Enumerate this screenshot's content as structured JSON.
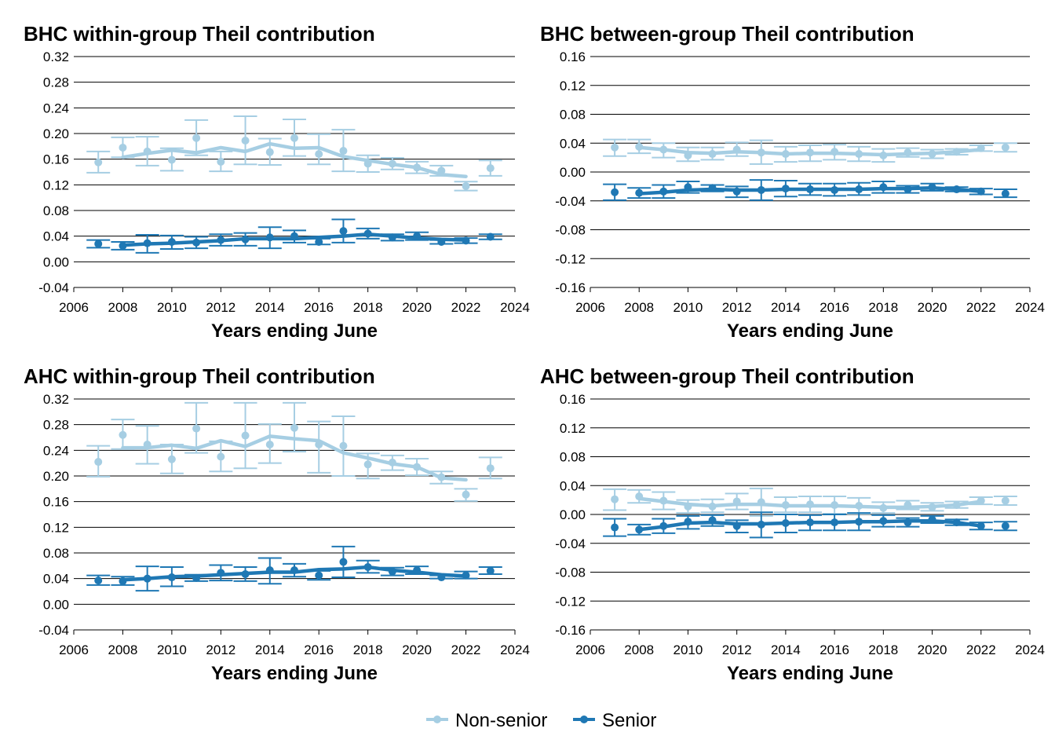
{
  "colors": {
    "non_senior": "#a6cee3",
    "senior": "#1f78b4",
    "grid": "#000000",
    "background": "#ffffff"
  },
  "legend": {
    "position": "bottom-center",
    "items": [
      "Non-senior",
      "Senior"
    ]
  },
  "chart_data": [
    {
      "type": "line",
      "title": "BHC within-group Theil contribution",
      "xlabel": "Years ending June",
      "ylabel": "",
      "xlim": [
        2006,
        2024
      ],
      "ylim": [
        -0.04,
        0.32
      ],
      "xticks": [
        "2006",
        "2008",
        "2010",
        "2012",
        "2014",
        "2016",
        "2018",
        "2020",
        "2022",
        "2024"
      ],
      "yticks": [
        "-0.04",
        "0.00",
        "0.04",
        "0.08",
        "0.12",
        "0.16",
        "0.20",
        "0.24",
        "0.28",
        "0.32"
      ],
      "grid": "horizontal",
      "x": [
        2007,
        2008,
        2009,
        2010,
        2011,
        2012,
        2013,
        2014,
        2015,
        2016,
        2017,
        2018,
        2019,
        2020,
        2021,
        2022,
        2023
      ],
      "series": [
        {
          "name": "Non-senior",
          "color_key": "non_senior",
          "points": [
            0.155,
            0.178,
            0.172,
            0.159,
            0.193,
            0.156,
            0.189,
            0.171,
            0.193,
            0.168,
            0.173,
            0.153,
            0.153,
            0.147,
            0.142,
            0.118,
            0.146
          ],
          "err_low": [
            0.139,
            0.163,
            0.15,
            0.142,
            0.166,
            0.141,
            0.152,
            0.151,
            0.165,
            0.152,
            0.141,
            0.14,
            0.144,
            0.138,
            0.134,
            0.111,
            0.134
          ],
          "err_high": [
            0.172,
            0.194,
            0.195,
            0.177,
            0.221,
            0.172,
            0.227,
            0.192,
            0.222,
            0.199,
            0.206,
            0.166,
            0.162,
            0.156,
            0.15,
            0.125,
            0.158
          ],
          "trend_x": [
            2008,
            2009,
            2010,
            2011,
            2012,
            2013,
            2014,
            2015,
            2016,
            2017,
            2018,
            2019,
            2020,
            2021,
            2022
          ],
          "trend": [
            0.163,
            0.169,
            0.174,
            0.17,
            0.178,
            0.172,
            0.184,
            0.177,
            0.178,
            0.164,
            0.158,
            0.152,
            0.147,
            0.136,
            0.133
          ]
        },
        {
          "name": "Senior",
          "color_key": "senior",
          "points": [
            0.028,
            0.025,
            0.029,
            0.031,
            0.03,
            0.034,
            0.035,
            0.038,
            0.04,
            0.031,
            0.048,
            0.044,
            0.038,
            0.04,
            0.031,
            0.033,
            0.039
          ],
          "err_low": [
            0.022,
            0.019,
            0.014,
            0.02,
            0.021,
            0.025,
            0.025,
            0.021,
            0.03,
            0.027,
            0.03,
            0.036,
            0.033,
            0.034,
            0.028,
            0.029,
            0.035
          ],
          "err_high": [
            0.034,
            0.031,
            0.042,
            0.041,
            0.039,
            0.043,
            0.045,
            0.054,
            0.049,
            0.036,
            0.066,
            0.052,
            0.043,
            0.046,
            0.034,
            0.037,
            0.043
          ],
          "trend_x": [
            2008,
            2009,
            2010,
            2011,
            2012,
            2013,
            2014,
            2015,
            2016,
            2017,
            2018,
            2019,
            2020,
            2021,
            2022
          ],
          "trend": [
            0.026,
            0.028,
            0.029,
            0.031,
            0.033,
            0.036,
            0.036,
            0.036,
            0.038,
            0.04,
            0.043,
            0.04,
            0.037,
            0.035,
            0.034
          ]
        }
      ]
    },
    {
      "type": "line",
      "title": "BHC between-group Theil contribution",
      "xlabel": "Years ending June",
      "ylabel": "",
      "xlim": [
        2006,
        2024
      ],
      "ylim": [
        -0.16,
        0.16
      ],
      "xticks": [
        "2006",
        "2008",
        "2010",
        "2012",
        "2014",
        "2016",
        "2018",
        "2020",
        "2022",
        "2024"
      ],
      "yticks": [
        "-0.16",
        "-0.12",
        "-0.08",
        "-0.04",
        "0.00",
        "0.04",
        "0.08",
        "0.12",
        "0.16"
      ],
      "grid": "horizontal",
      "x": [
        2007,
        2008,
        2009,
        2010,
        2011,
        2012,
        2013,
        2014,
        2015,
        2016,
        2017,
        2018,
        2019,
        2020,
        2021,
        2022,
        2023
      ],
      "series": [
        {
          "name": "Non-senior",
          "color_key": "non_senior",
          "points": [
            0.034,
            0.035,
            0.031,
            0.023,
            0.025,
            0.031,
            0.027,
            0.025,
            0.027,
            0.028,
            0.025,
            0.023,
            0.027,
            0.025,
            0.028,
            0.033,
            0.034
          ],
          "err_low": [
            0.022,
            0.026,
            0.02,
            0.015,
            0.017,
            0.022,
            0.011,
            0.014,
            0.015,
            0.017,
            0.015,
            0.014,
            0.021,
            0.019,
            0.024,
            0.029,
            0.028
          ],
          "err_high": [
            0.045,
            0.045,
            0.04,
            0.034,
            0.034,
            0.041,
            0.044,
            0.035,
            0.037,
            0.038,
            0.035,
            0.032,
            0.033,
            0.031,
            0.032,
            0.037,
            0.04
          ],
          "trend_x": [
            2008,
            2009,
            2010,
            2011,
            2012,
            2013,
            2014,
            2015,
            2016,
            2017,
            2018,
            2019,
            2020,
            2021,
            2022
          ],
          "trend": [
            0.034,
            0.031,
            0.027,
            0.026,
            0.028,
            0.027,
            0.025,
            0.026,
            0.026,
            0.025,
            0.024,
            0.025,
            0.026,
            0.028,
            0.031
          ]
        },
        {
          "name": "Senior",
          "color_key": "senior",
          "points": [
            -0.028,
            -0.029,
            -0.027,
            -0.021,
            -0.022,
            -0.027,
            -0.025,
            -0.023,
            -0.024,
            -0.025,
            -0.024,
            -0.021,
            -0.024,
            -0.021,
            -0.024,
            -0.027,
            -0.03
          ],
          "err_low": [
            -0.039,
            -0.036,
            -0.036,
            -0.029,
            -0.027,
            -0.035,
            -0.039,
            -0.034,
            -0.032,
            -0.033,
            -0.032,
            -0.029,
            -0.029,
            -0.026,
            -0.027,
            -0.031,
            -0.035
          ],
          "err_high": [
            -0.017,
            -0.022,
            -0.018,
            -0.013,
            -0.018,
            -0.02,
            -0.011,
            -0.012,
            -0.016,
            -0.016,
            -0.015,
            -0.013,
            -0.019,
            -0.016,
            -0.021,
            -0.023,
            -0.024
          ],
          "trend_x": [
            2008,
            2009,
            2010,
            2011,
            2012,
            2013,
            2014,
            2015,
            2016,
            2017,
            2018,
            2019,
            2020,
            2021,
            2022
          ],
          "trend": [
            -0.03,
            -0.028,
            -0.025,
            -0.024,
            -0.025,
            -0.025,
            -0.024,
            -0.024,
            -0.024,
            -0.024,
            -0.023,
            -0.023,
            -0.022,
            -0.024,
            -0.027
          ]
        }
      ]
    },
    {
      "type": "line",
      "title": "AHC within-group Theil contribution",
      "xlabel": "Years ending June",
      "ylabel": "",
      "xlim": [
        2006,
        2024
      ],
      "ylim": [
        -0.04,
        0.32
      ],
      "xticks": [
        "2006",
        "2008",
        "2010",
        "2012",
        "2014",
        "2016",
        "2018",
        "2020",
        "2022",
        "2024"
      ],
      "yticks": [
        "-0.04",
        "0.00",
        "0.04",
        "0.08",
        "0.12",
        "0.16",
        "0.20",
        "0.24",
        "0.28",
        "0.32"
      ],
      "grid": "horizontal",
      "x": [
        2007,
        2008,
        2009,
        2010,
        2011,
        2012,
        2013,
        2014,
        2015,
        2016,
        2017,
        2018,
        2019,
        2020,
        2021,
        2022,
        2023
      ],
      "series": [
        {
          "name": "Non-senior",
          "color_key": "non_senior",
          "points": [
            0.222,
            0.264,
            0.249,
            0.226,
            0.274,
            0.23,
            0.263,
            0.249,
            0.275,
            0.249,
            0.247,
            0.218,
            0.221,
            0.214,
            0.198,
            0.171,
            0.212
          ],
          "err_low": [
            0.199,
            0.242,
            0.219,
            0.204,
            0.236,
            0.207,
            0.212,
            0.22,
            0.238,
            0.205,
            0.2,
            0.196,
            0.209,
            0.201,
            0.188,
            0.161,
            0.196
          ],
          "err_high": [
            0.247,
            0.288,
            0.278,
            0.249,
            0.314,
            0.254,
            0.314,
            0.281,
            0.314,
            0.285,
            0.293,
            0.235,
            0.232,
            0.227,
            0.207,
            0.18,
            0.229
          ],
          "trend_x": [
            2008,
            2009,
            2010,
            2011,
            2012,
            2013,
            2014,
            2015,
            2016,
            2017,
            2018,
            2019,
            2020,
            2021,
            2022
          ],
          "trend": [
            0.244,
            0.244,
            0.248,
            0.243,
            0.255,
            0.246,
            0.262,
            0.258,
            0.255,
            0.236,
            0.228,
            0.219,
            0.214,
            0.197,
            0.194
          ]
        },
        {
          "name": "Senior",
          "color_key": "senior",
          "points": [
            0.037,
            0.036,
            0.04,
            0.042,
            0.041,
            0.049,
            0.047,
            0.053,
            0.053,
            0.045,
            0.066,
            0.058,
            0.051,
            0.053,
            0.042,
            0.045,
            0.052
          ],
          "err_low": [
            0.03,
            0.03,
            0.021,
            0.028,
            0.036,
            0.037,
            0.036,
            0.032,
            0.043,
            0.038,
            0.042,
            0.049,
            0.045,
            0.047,
            0.04,
            0.04,
            0.047
          ],
          "err_high": [
            0.045,
            0.043,
            0.059,
            0.058,
            0.046,
            0.061,
            0.058,
            0.072,
            0.063,
            0.052,
            0.09,
            0.068,
            0.057,
            0.059,
            0.045,
            0.051,
            0.058
          ],
          "trend_x": [
            2008,
            2009,
            2010,
            2011,
            2012,
            2013,
            2014,
            2015,
            2016,
            2017,
            2018,
            2019,
            2020,
            2021,
            2022
          ],
          "trend": [
            0.038,
            0.04,
            0.043,
            0.044,
            0.046,
            0.048,
            0.05,
            0.05,
            0.054,
            0.055,
            0.058,
            0.053,
            0.05,
            0.046,
            0.044
          ]
        }
      ]
    },
    {
      "type": "line",
      "title": "AHC between-group Theil contribution",
      "xlabel": "Years ending June",
      "ylabel": "",
      "xlim": [
        2006,
        2024
      ],
      "ylim": [
        -0.16,
        0.16
      ],
      "xticks": [
        "2006",
        "2008",
        "2010",
        "2012",
        "2014",
        "2016",
        "2018",
        "2020",
        "2022",
        "2024"
      ],
      "yticks": [
        "-0.16",
        "-0.12",
        "-0.08",
        "-0.04",
        "0.00",
        "0.04",
        "0.08",
        "0.12",
        "0.16"
      ],
      "grid": "horizontal",
      "x": [
        2007,
        2008,
        2009,
        2010,
        2011,
        2012,
        2013,
        2014,
        2015,
        2016,
        2017,
        2018,
        2019,
        2020,
        2021,
        2022,
        2023
      ],
      "series": [
        {
          "name": "Non-senior",
          "color_key": "non_senior",
          "points": [
            0.021,
            0.025,
            0.019,
            0.011,
            0.011,
            0.018,
            0.017,
            0.013,
            0.014,
            0.013,
            0.012,
            0.009,
            0.013,
            0.01,
            0.013,
            0.019,
            0.019
          ],
          "err_low": [
            0.006,
            0.016,
            0.007,
            0.002,
            0.003,
            0.007,
            -0.002,
            0.003,
            0.003,
            0.001,
            0.001,
            0.002,
            0.007,
            0.005,
            0.009,
            0.014,
            0.013
          ],
          "err_high": [
            0.035,
            0.034,
            0.031,
            0.02,
            0.021,
            0.029,
            0.036,
            0.024,
            0.025,
            0.025,
            0.023,
            0.017,
            0.019,
            0.016,
            0.018,
            0.024,
            0.025
          ],
          "trend_x": [
            2008,
            2009,
            2010,
            2011,
            2012,
            2013,
            2014,
            2015,
            2016,
            2017,
            2018,
            2019,
            2020,
            2021,
            2022
          ],
          "trend": [
            0.022,
            0.018,
            0.014,
            0.012,
            0.014,
            0.014,
            0.012,
            0.012,
            0.012,
            0.011,
            0.01,
            0.01,
            0.011,
            0.013,
            0.018
          ]
        },
        {
          "name": "Senior",
          "color_key": "senior",
          "points": [
            -0.018,
            -0.021,
            -0.016,
            -0.01,
            -0.008,
            -0.016,
            -0.014,
            -0.012,
            -0.011,
            -0.011,
            -0.01,
            -0.009,
            -0.011,
            -0.007,
            -0.011,
            -0.016,
            -0.016
          ],
          "err_low": [
            -0.03,
            -0.028,
            -0.026,
            -0.02,
            -0.016,
            -0.025,
            -0.032,
            -0.025,
            -0.022,
            -0.022,
            -0.022,
            -0.017,
            -0.017,
            -0.012,
            -0.015,
            -0.021,
            -0.022
          ],
          "err_high": [
            -0.006,
            -0.014,
            -0.006,
            -0.002,
            -0.001,
            -0.008,
            0.003,
            0.0,
            -0.001,
            0.0,
            0.002,
            -0.001,
            -0.005,
            -0.002,
            -0.007,
            -0.011,
            -0.01
          ],
          "trend_x": [
            2008,
            2009,
            2010,
            2011,
            2012,
            2013,
            2014,
            2015,
            2016,
            2017,
            2018,
            2019,
            2020,
            2021,
            2022
          ],
          "trend": [
            -0.021,
            -0.017,
            -0.012,
            -0.011,
            -0.013,
            -0.013,
            -0.012,
            -0.011,
            -0.011,
            -0.01,
            -0.01,
            -0.009,
            -0.009,
            -0.011,
            -0.016
          ]
        }
      ]
    }
  ]
}
